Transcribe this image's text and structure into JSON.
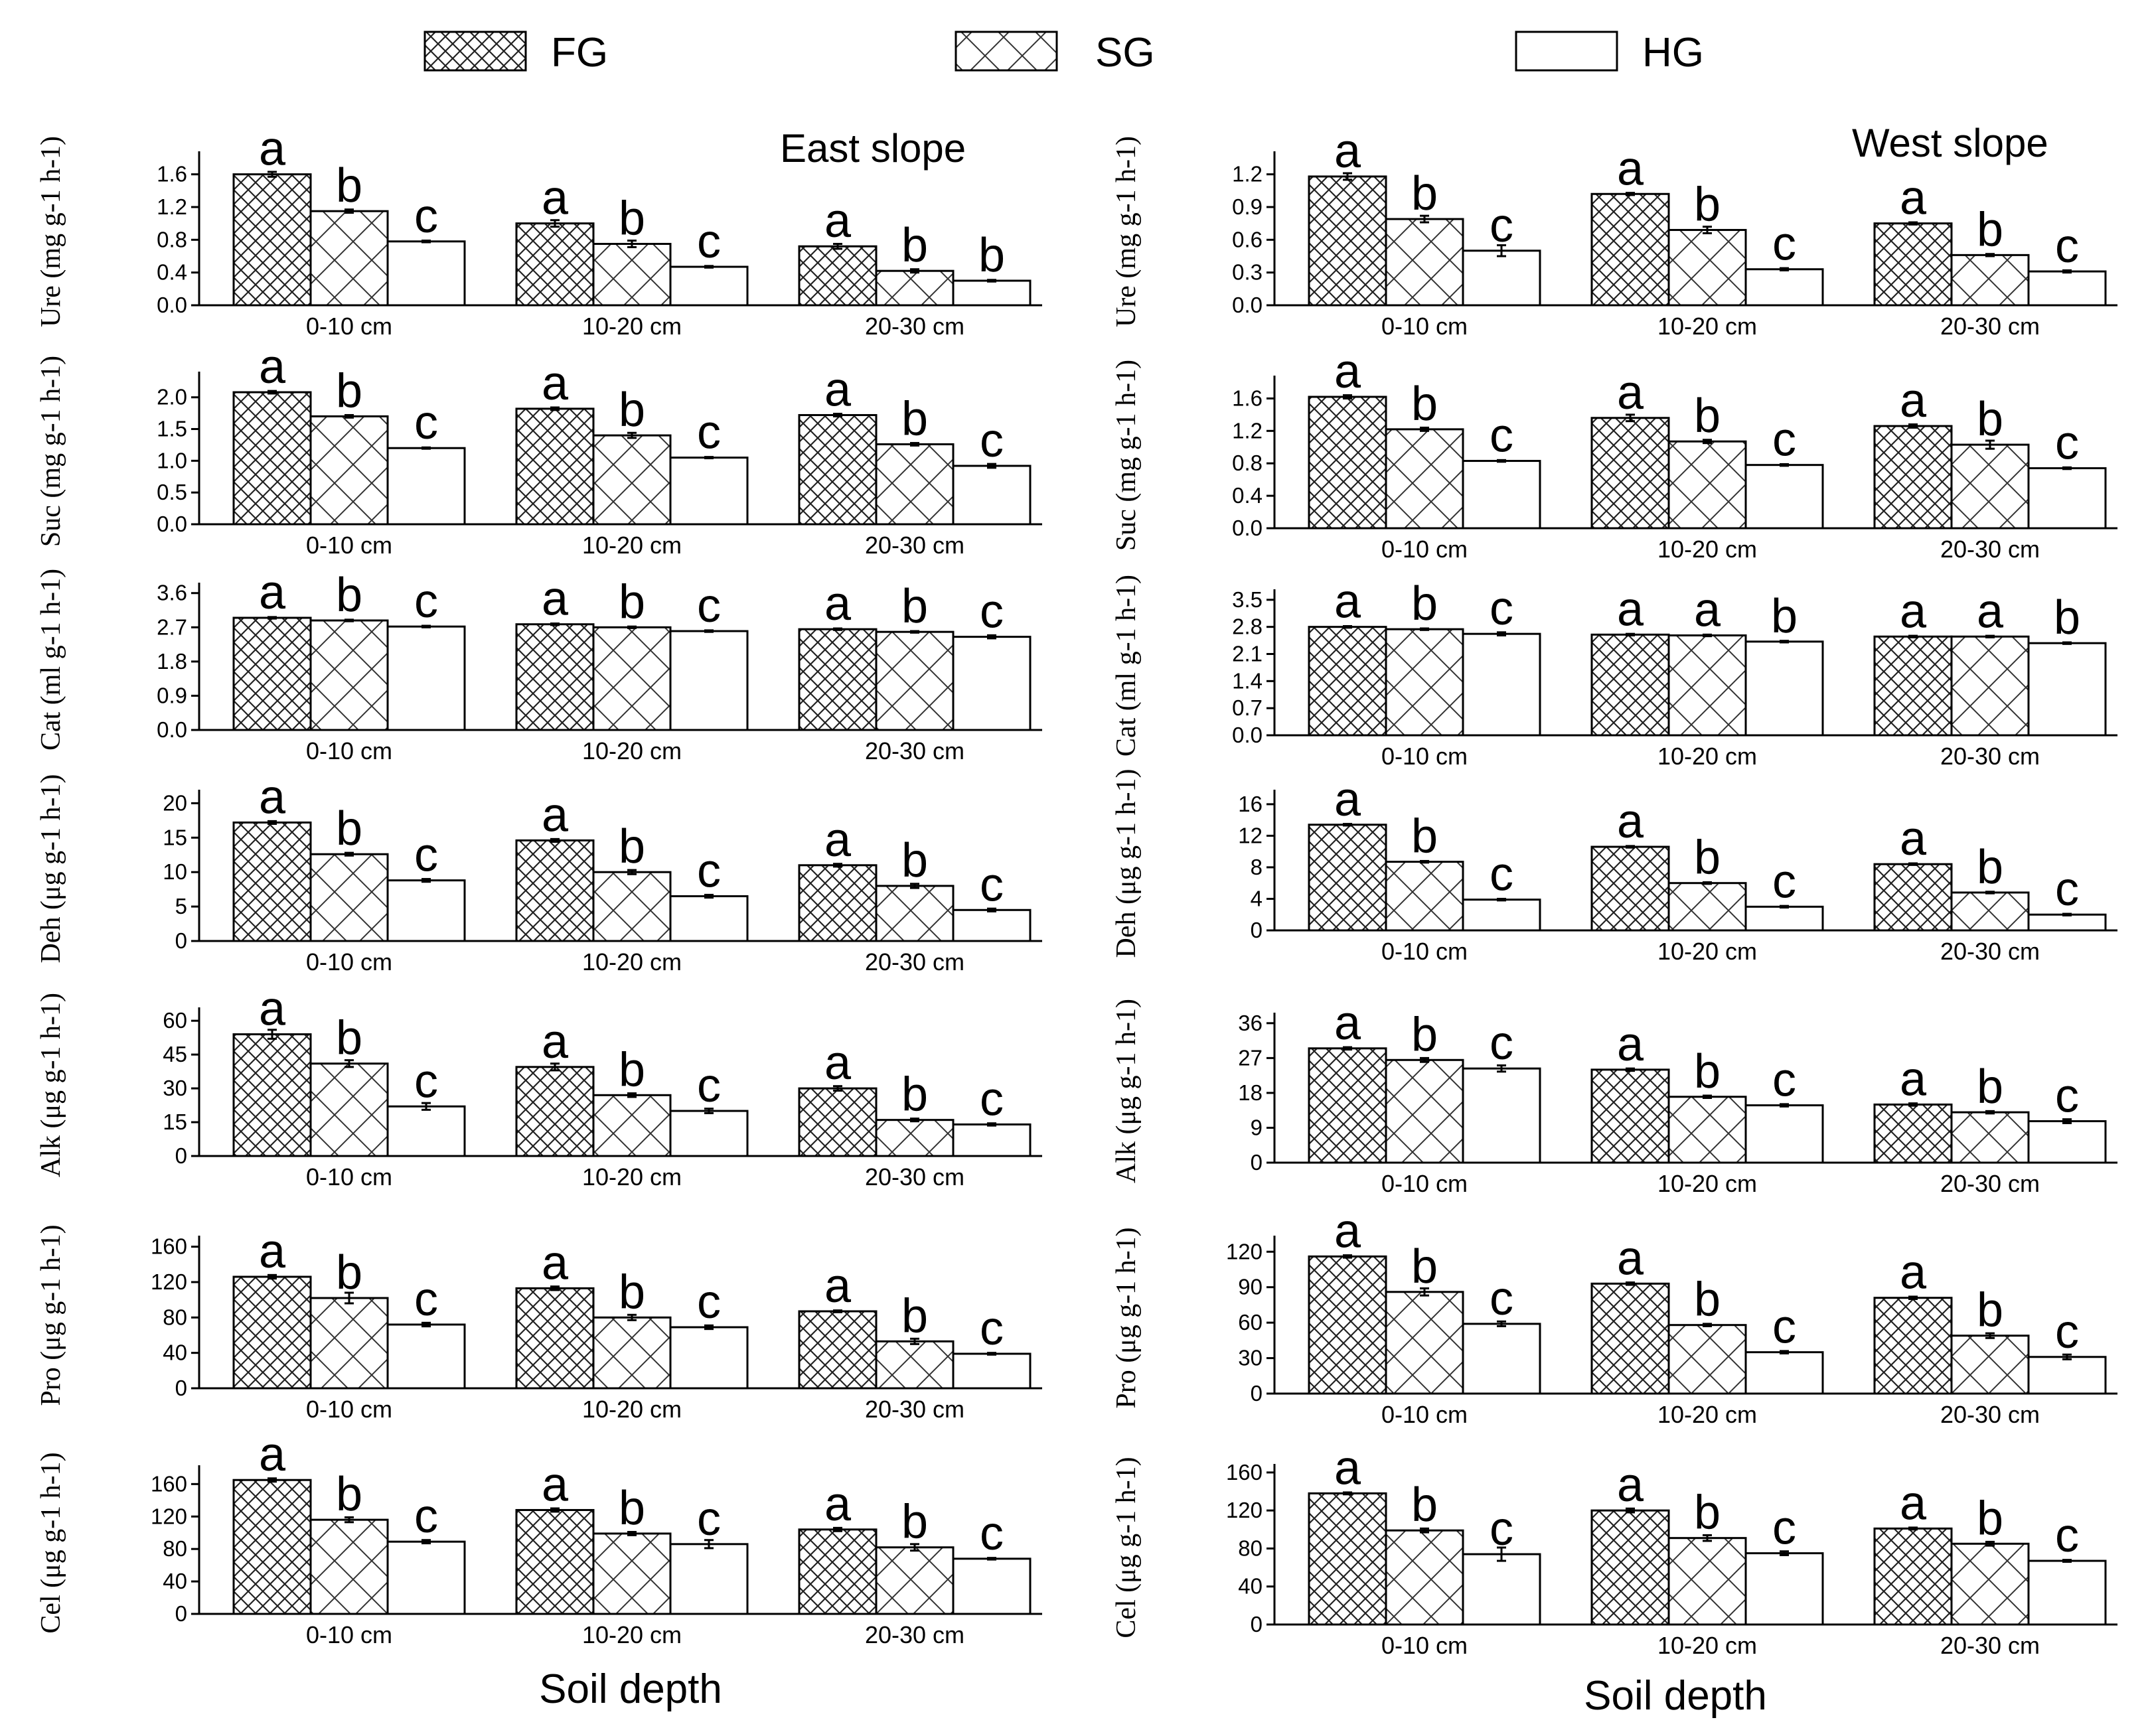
{
  "legend": [
    {
      "code": "FG",
      "pattern": "fine-crosshatch"
    },
    {
      "code": "SG",
      "pattern": "coarse-crosshatch"
    },
    {
      "code": "HG",
      "pattern": "none"
    }
  ],
  "colors": {
    "ink": "#000000",
    "background": "#ffffff"
  },
  "panels": [
    {
      "title": "East slope",
      "xlabel": "Soil depth"
    },
    {
      "title": "West slope",
      "xlabel": "Soil depth"
    }
  ],
  "chart_data": [
    {
      "type": "bar",
      "panel": "East slope",
      "name": "Ure",
      "ylabel": "Ure (mg g-1 h-1)",
      "ylim": [
        0,
        1.8
      ],
      "yticks": [
        "0.0",
        "0.4",
        "0.8",
        "1.2",
        "1.6"
      ],
      "categories": [
        "0-10 cm",
        "10-20 cm",
        "20-30 cm"
      ],
      "series": [
        {
          "name": "FG",
          "values": [
            1.6,
            1.0,
            0.72
          ],
          "errors": [
            0.03,
            0.04,
            0.03
          ],
          "letters": [
            "a",
            "a",
            "a"
          ]
        },
        {
          "name": "SG",
          "values": [
            1.15,
            0.75,
            0.42
          ],
          "errors": [
            0.02,
            0.04,
            0.02
          ],
          "letters": [
            "b",
            "b",
            "b"
          ]
        },
        {
          "name": "HG",
          "values": [
            0.78,
            0.47,
            0.3
          ],
          "errors": [
            0.01,
            0.01,
            0.01
          ],
          "letters": [
            "c",
            "c",
            "b"
          ]
        }
      ]
    },
    {
      "type": "bar",
      "panel": "East slope",
      "name": "Suc",
      "ylabel": "Suc (mg g-1 h-1)",
      "ylim": [
        0,
        2.3
      ],
      "yticks": [
        "0.0",
        "0.5",
        "1.0",
        "1.5",
        "2.0"
      ],
      "categories": [
        "0-10 cm",
        "10-20 cm",
        "20-30 cm"
      ],
      "series": [
        {
          "name": "FG",
          "values": [
            2.08,
            1.82,
            1.72
          ],
          "errors": [
            0.02,
            0.02,
            0.02
          ],
          "letters": [
            "a",
            "a",
            "a"
          ]
        },
        {
          "name": "SG",
          "values": [
            1.7,
            1.4,
            1.26
          ],
          "errors": [
            0.02,
            0.04,
            0.02
          ],
          "letters": [
            "b",
            "b",
            "b"
          ]
        },
        {
          "name": "HG",
          "values": [
            1.2,
            1.05,
            0.92
          ],
          "errors": [
            0.01,
            0.01,
            0.03
          ],
          "letters": [
            "c",
            "c",
            "c"
          ]
        }
      ]
    },
    {
      "type": "bar",
      "panel": "East slope",
      "name": "Cat",
      "ylabel": "Cat (ml g-1 h-1)",
      "ylim": [
        0,
        3.7
      ],
      "yticks": [
        "0.0",
        "0.9",
        "1.8",
        "2.7",
        "3.6"
      ],
      "categories": [
        "0-10 cm",
        "10-20 cm",
        "20-30 cm"
      ],
      "series": [
        {
          "name": "FG",
          "values": [
            2.95,
            2.78,
            2.65
          ],
          "errors": [
            0.02,
            0.02,
            0.02
          ],
          "letters": [
            "a",
            "a",
            "a"
          ]
        },
        {
          "name": "SG",
          "values": [
            2.88,
            2.7,
            2.58
          ],
          "errors": [
            0.02,
            0.02,
            0.02
          ],
          "letters": [
            "b",
            "b",
            "b"
          ]
        },
        {
          "name": "HG",
          "values": [
            2.72,
            2.6,
            2.45
          ],
          "errors": [
            0.02,
            0.02,
            0.04
          ],
          "letters": [
            "c",
            "c",
            "c"
          ]
        }
      ]
    },
    {
      "type": "bar",
      "panel": "East slope",
      "name": "Deh",
      "ylabel": "Deh (μg g-1 h-1)",
      "ylim": [
        0,
        21
      ],
      "yticks": [
        "0",
        "5",
        "10",
        "15",
        "20"
      ],
      "categories": [
        "0-10 cm",
        "10-20 cm",
        "20-30 cm"
      ],
      "series": [
        {
          "name": "FG",
          "values": [
            17.2,
            14.6,
            11.0
          ],
          "errors": [
            0.2,
            0.2,
            0.2
          ],
          "letters": [
            "a",
            "a",
            "a"
          ]
        },
        {
          "name": "SG",
          "values": [
            12.6,
            10.0,
            8.0
          ],
          "errors": [
            0.2,
            0.3,
            0.3
          ],
          "letters": [
            "b",
            "b",
            "b"
          ]
        },
        {
          "name": "HG",
          "values": [
            8.8,
            6.5,
            4.5
          ],
          "errors": [
            0.2,
            0.2,
            0.2
          ],
          "letters": [
            "c",
            "c",
            "c"
          ]
        }
      ]
    },
    {
      "type": "bar",
      "panel": "East slope",
      "name": "Alk",
      "ylabel": "Alk (μg g-1 h-1)",
      "ylim": [
        0,
        63
      ],
      "yticks": [
        "0",
        "15",
        "30",
        "45",
        "60"
      ],
      "categories": [
        "0-10 cm",
        "10-20 cm",
        "20-30 cm"
      ],
      "series": [
        {
          "name": "FG",
          "values": [
            54,
            39.5,
            30
          ],
          "errors": [
            2,
            1.5,
            1
          ],
          "letters": [
            "a",
            "a",
            "a"
          ]
        },
        {
          "name": "SG",
          "values": [
            41,
            27,
            16
          ],
          "errors": [
            1.5,
            0.8,
            0.6
          ],
          "letters": [
            "b",
            "b",
            "b"
          ]
        },
        {
          "name": "HG",
          "values": [
            22,
            20,
            14
          ],
          "errors": [
            1.5,
            1,
            0.5
          ],
          "letters": [
            "c",
            "c",
            "c"
          ]
        }
      ]
    },
    {
      "type": "bar",
      "panel": "East slope",
      "name": "Pro",
      "ylabel": "Pro (μg g-1 h-1)",
      "ylim": [
        0,
        165
      ],
      "yticks": [
        "0",
        "40",
        "80",
        "120",
        "160"
      ],
      "categories": [
        "0-10 cm",
        "10-20 cm",
        "20-30 cm"
      ],
      "series": [
        {
          "name": "FG",
          "values": [
            126,
            113,
            87
          ],
          "errors": [
            2,
            2,
            1
          ],
          "letters": [
            "a",
            "a",
            "a"
          ]
        },
        {
          "name": "SG",
          "values": [
            102,
            80,
            53
          ],
          "errors": [
            6,
            3,
            3
          ],
          "letters": [
            "b",
            "b",
            "b"
          ]
        },
        {
          "name": "HG",
          "values": [
            72,
            69,
            39
          ],
          "errors": [
            2,
            2,
            1
          ],
          "letters": [
            "c",
            "c",
            "c"
          ]
        }
      ]
    },
    {
      "type": "bar",
      "panel": "East slope",
      "name": "Cel",
      "ylabel": "Cel (μg g-1 h-1)",
      "ylim": [
        0,
        175
      ],
      "yticks": [
        "0",
        "40",
        "80",
        "120",
        "160"
      ],
      "categories": [
        "0-10 cm",
        "10-20 cm",
        "20-30 cm"
      ],
      "series": [
        {
          "name": "FG",
          "values": [
            165,
            128,
            104
          ],
          "errors": [
            2,
            2,
            2
          ],
          "letters": [
            "a",
            "a",
            "a"
          ]
        },
        {
          "name": "SG",
          "values": [
            116,
            99,
            82
          ],
          "errors": [
            3,
            2,
            4
          ],
          "letters": [
            "b",
            "b",
            "b"
          ]
        },
        {
          "name": "HG",
          "values": [
            89,
            86,
            68
          ],
          "errors": [
            2,
            5,
            1
          ],
          "letters": [
            "c",
            "c",
            "c"
          ]
        }
      ]
    },
    {
      "type": "bar",
      "panel": "West slope",
      "name": "Ure",
      "ylabel": "Ure (mg g-1 h-1)",
      "ylim": [
        0,
        1.35
      ],
      "yticks": [
        "0.0",
        "0.3",
        "0.6",
        "0.9",
        "1.2"
      ],
      "categories": [
        "0-10 cm",
        "10-20 cm",
        "20-30 cm"
      ],
      "series": [
        {
          "name": "FG",
          "values": [
            1.18,
            1.02,
            0.75
          ],
          "errors": [
            0.03,
            0.01,
            0.01
          ],
          "letters": [
            "a",
            "a",
            "a"
          ]
        },
        {
          "name": "SG",
          "values": [
            0.79,
            0.69,
            0.46
          ],
          "errors": [
            0.03,
            0.03,
            0.01
          ],
          "letters": [
            "b",
            "b",
            "b"
          ]
        },
        {
          "name": "HG",
          "values": [
            0.5,
            0.33,
            0.31
          ],
          "errors": [
            0.05,
            0.01,
            0.01
          ],
          "letters": [
            "c",
            "c",
            "c"
          ]
        }
      ]
    },
    {
      "type": "bar",
      "panel": "West slope",
      "name": "Suc",
      "ylabel": "Suc (mg g-1 h-1)",
      "ylim": [
        0,
        1.8
      ],
      "yticks": [
        "0.0",
        "0.4",
        "0.8",
        "1.2",
        "1.6"
      ],
      "categories": [
        "0-10 cm",
        "10-20 cm",
        "20-30 cm"
      ],
      "series": [
        {
          "name": "FG",
          "values": [
            1.62,
            1.36,
            1.26
          ],
          "errors": [
            0.02,
            0.04,
            0.02
          ],
          "letters": [
            "a",
            "a",
            "a"
          ]
        },
        {
          "name": "SG",
          "values": [
            1.22,
            1.07,
            1.03
          ],
          "errors": [
            0.02,
            0.02,
            0.05
          ],
          "letters": [
            "b",
            "b",
            "b"
          ]
        },
        {
          "name": "HG",
          "values": [
            0.83,
            0.78,
            0.74
          ],
          "errors": [
            0.01,
            0.01,
            0.01
          ],
          "letters": [
            "c",
            "c",
            "c"
          ]
        }
      ]
    },
    {
      "type": "bar",
      "panel": "West slope",
      "name": "Cat",
      "ylabel": "Cat (ml g-1 h-1)",
      "ylim": [
        0,
        3.6
      ],
      "yticks": [
        "0.0",
        "0.7",
        "1.4",
        "2.1",
        "2.8",
        "3.5"
      ],
      "categories": [
        "0-10 cm",
        "10-20 cm",
        "20-30 cm"
      ],
      "series": [
        {
          "name": "FG",
          "values": [
            2.8,
            2.6,
            2.55
          ],
          "errors": [
            0.02,
            0.02,
            0.02
          ],
          "letters": [
            "a",
            "a",
            "a"
          ]
        },
        {
          "name": "SG",
          "values": [
            2.74,
            2.58,
            2.55
          ],
          "errors": [
            0.02,
            0.02,
            0.02
          ],
          "letters": [
            "b",
            "a",
            "a"
          ]
        },
        {
          "name": "HG",
          "values": [
            2.62,
            2.42,
            2.38
          ],
          "errors": [
            0.04,
            0.02,
            0.02
          ],
          "letters": [
            "c",
            "b",
            "b"
          ]
        }
      ]
    },
    {
      "type": "bar",
      "panel": "West slope",
      "name": "Deh",
      "ylabel": "Deh (μg g-1 h-1)",
      "ylim": [
        0,
        17
      ],
      "yticks": [
        "0",
        "4",
        "8",
        "12",
        "16"
      ],
      "categories": [
        "0-10 cm",
        "10-20 cm",
        "20-30 cm"
      ],
      "series": [
        {
          "name": "FG",
          "values": [
            13.4,
            10.6,
            8.4
          ],
          "errors": [
            0.1,
            0.1,
            0.1
          ],
          "letters": [
            "a",
            "a",
            "a"
          ]
        },
        {
          "name": "SG",
          "values": [
            8.7,
            6.0,
            4.8
          ],
          "errors": [
            0.1,
            0.1,
            0.1
          ],
          "letters": [
            "b",
            "b",
            "b"
          ]
        },
        {
          "name": "HG",
          "values": [
            3.9,
            3.0,
            2.0
          ],
          "errors": [
            0.1,
            0.1,
            0.1
          ],
          "letters": [
            "c",
            "c",
            "c"
          ]
        }
      ]
    },
    {
      "type": "bar",
      "panel": "West slope",
      "name": "Alk",
      "ylabel": "Alk (μg g-1 h-1)",
      "ylim": [
        0,
        37
      ],
      "yticks": [
        "0",
        "9",
        "18",
        "27",
        "36"
      ],
      "categories": [
        "0-10 cm",
        "10-20 cm",
        "20-30 cm"
      ],
      "series": [
        {
          "name": "FG",
          "values": [
            29.5,
            24,
            15
          ],
          "errors": [
            0.3,
            0.3,
            0.3
          ],
          "letters": [
            "a",
            "a",
            "a"
          ]
        },
        {
          "name": "SG",
          "values": [
            26.5,
            17,
            13
          ],
          "errors": [
            0.5,
            0.3,
            0.3
          ],
          "letters": [
            "b",
            "b",
            "b"
          ]
        },
        {
          "name": "HG",
          "values": [
            24.3,
            14.8,
            10.7
          ],
          "errors": [
            0.8,
            0.3,
            0.5
          ],
          "letters": [
            "c",
            "c",
            "c"
          ]
        }
      ]
    },
    {
      "type": "bar",
      "panel": "West slope",
      "name": "Pro",
      "ylabel": "Pro (μg g-1 h-1)",
      "ylim": [
        0,
        128
      ],
      "yticks": [
        "0",
        "30",
        "60",
        "90",
        "120"
      ],
      "categories": [
        "0-10 cm",
        "10-20 cm",
        "20-30 cm"
      ],
      "series": [
        {
          "name": "FG",
          "values": [
            116,
            93,
            81
          ],
          "errors": [
            1,
            1,
            1
          ],
          "letters": [
            "a",
            "a",
            "a"
          ]
        },
        {
          "name": "SG",
          "values": [
            86,
            58,
            49
          ],
          "errors": [
            3,
            1,
            2
          ],
          "letters": [
            "b",
            "b",
            "b"
          ]
        },
        {
          "name": "HG",
          "values": [
            59,
            35,
            31
          ],
          "errors": [
            2,
            1,
            2
          ],
          "letters": [
            "c",
            "c",
            "c"
          ]
        }
      ]
    },
    {
      "type": "bar",
      "panel": "West slope",
      "name": "Cel",
      "ylabel": "Cel (μg g-1 h-1)",
      "ylim": [
        0,
        162
      ],
      "yticks": [
        "0",
        "40",
        "80",
        "120",
        "160"
      ],
      "categories": [
        "0-10 cm",
        "10-20 cm",
        "20-30 cm"
      ],
      "series": [
        {
          "name": "FG",
          "values": [
            138,
            120,
            101
          ],
          "errors": [
            1,
            2,
            1
          ],
          "letters": [
            "a",
            "a",
            "a"
          ]
        },
        {
          "name": "SG",
          "values": [
            99,
            91,
            85
          ],
          "errors": [
            2,
            3,
            2
          ],
          "letters": [
            "b",
            "b",
            "b"
          ]
        },
        {
          "name": "HG",
          "values": [
            74,
            75,
            67
          ],
          "errors": [
            7,
            2,
            1
          ],
          "letters": [
            "c",
            "c",
            "c"
          ]
        }
      ]
    }
  ]
}
